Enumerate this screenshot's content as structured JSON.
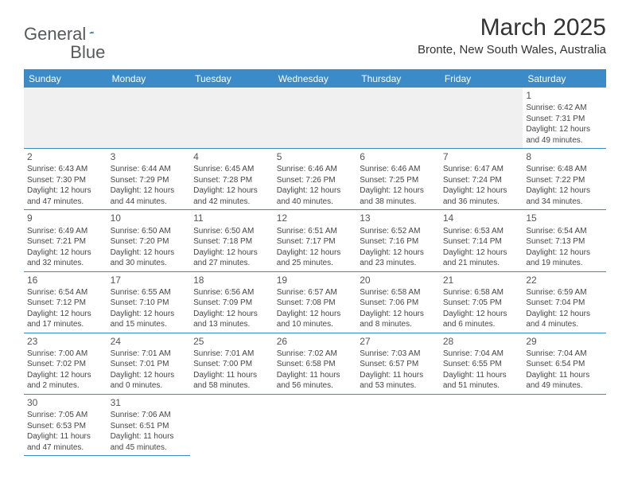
{
  "logo": {
    "text1": "General",
    "text2": "Blue"
  },
  "title": "March 2025",
  "subtitle": "Bronte, New South Wales, Australia",
  "colors": {
    "header_bg": "#3b8bc9",
    "header_text": "#ffffff",
    "border": "#3b8bc9",
    "empty_bg": "#f0f0f0",
    "page_bg": "#ffffff",
    "text": "#454545",
    "daynum": "#555555"
  },
  "days_of_week": [
    "Sunday",
    "Monday",
    "Tuesday",
    "Wednesday",
    "Thursday",
    "Friday",
    "Saturday"
  ],
  "weeks": [
    [
      null,
      null,
      null,
      null,
      null,
      null,
      {
        "n": "1",
        "sr": "Sunrise: 6:42 AM",
        "ss": "Sunset: 7:31 PM",
        "d1": "Daylight: 12 hours",
        "d2": "and 49 minutes."
      }
    ],
    [
      {
        "n": "2",
        "sr": "Sunrise: 6:43 AM",
        "ss": "Sunset: 7:30 PM",
        "d1": "Daylight: 12 hours",
        "d2": "and 47 minutes."
      },
      {
        "n": "3",
        "sr": "Sunrise: 6:44 AM",
        "ss": "Sunset: 7:29 PM",
        "d1": "Daylight: 12 hours",
        "d2": "and 44 minutes."
      },
      {
        "n": "4",
        "sr": "Sunrise: 6:45 AM",
        "ss": "Sunset: 7:28 PM",
        "d1": "Daylight: 12 hours",
        "d2": "and 42 minutes."
      },
      {
        "n": "5",
        "sr": "Sunrise: 6:46 AM",
        "ss": "Sunset: 7:26 PM",
        "d1": "Daylight: 12 hours",
        "d2": "and 40 minutes."
      },
      {
        "n": "6",
        "sr": "Sunrise: 6:46 AM",
        "ss": "Sunset: 7:25 PM",
        "d1": "Daylight: 12 hours",
        "d2": "and 38 minutes."
      },
      {
        "n": "7",
        "sr": "Sunrise: 6:47 AM",
        "ss": "Sunset: 7:24 PM",
        "d1": "Daylight: 12 hours",
        "d2": "and 36 minutes."
      },
      {
        "n": "8",
        "sr": "Sunrise: 6:48 AM",
        "ss": "Sunset: 7:22 PM",
        "d1": "Daylight: 12 hours",
        "d2": "and 34 minutes."
      }
    ],
    [
      {
        "n": "9",
        "sr": "Sunrise: 6:49 AM",
        "ss": "Sunset: 7:21 PM",
        "d1": "Daylight: 12 hours",
        "d2": "and 32 minutes."
      },
      {
        "n": "10",
        "sr": "Sunrise: 6:50 AM",
        "ss": "Sunset: 7:20 PM",
        "d1": "Daylight: 12 hours",
        "d2": "and 30 minutes."
      },
      {
        "n": "11",
        "sr": "Sunrise: 6:50 AM",
        "ss": "Sunset: 7:18 PM",
        "d1": "Daylight: 12 hours",
        "d2": "and 27 minutes."
      },
      {
        "n": "12",
        "sr": "Sunrise: 6:51 AM",
        "ss": "Sunset: 7:17 PM",
        "d1": "Daylight: 12 hours",
        "d2": "and 25 minutes."
      },
      {
        "n": "13",
        "sr": "Sunrise: 6:52 AM",
        "ss": "Sunset: 7:16 PM",
        "d1": "Daylight: 12 hours",
        "d2": "and 23 minutes."
      },
      {
        "n": "14",
        "sr": "Sunrise: 6:53 AM",
        "ss": "Sunset: 7:14 PM",
        "d1": "Daylight: 12 hours",
        "d2": "and 21 minutes."
      },
      {
        "n": "15",
        "sr": "Sunrise: 6:54 AM",
        "ss": "Sunset: 7:13 PM",
        "d1": "Daylight: 12 hours",
        "d2": "and 19 minutes."
      }
    ],
    [
      {
        "n": "16",
        "sr": "Sunrise: 6:54 AM",
        "ss": "Sunset: 7:12 PM",
        "d1": "Daylight: 12 hours",
        "d2": "and 17 minutes."
      },
      {
        "n": "17",
        "sr": "Sunrise: 6:55 AM",
        "ss": "Sunset: 7:10 PM",
        "d1": "Daylight: 12 hours",
        "d2": "and 15 minutes."
      },
      {
        "n": "18",
        "sr": "Sunrise: 6:56 AM",
        "ss": "Sunset: 7:09 PM",
        "d1": "Daylight: 12 hours",
        "d2": "and 13 minutes."
      },
      {
        "n": "19",
        "sr": "Sunrise: 6:57 AM",
        "ss": "Sunset: 7:08 PM",
        "d1": "Daylight: 12 hours",
        "d2": "and 10 minutes."
      },
      {
        "n": "20",
        "sr": "Sunrise: 6:58 AM",
        "ss": "Sunset: 7:06 PM",
        "d1": "Daylight: 12 hours",
        "d2": "and 8 minutes."
      },
      {
        "n": "21",
        "sr": "Sunrise: 6:58 AM",
        "ss": "Sunset: 7:05 PM",
        "d1": "Daylight: 12 hours",
        "d2": "and 6 minutes."
      },
      {
        "n": "22",
        "sr": "Sunrise: 6:59 AM",
        "ss": "Sunset: 7:04 PM",
        "d1": "Daylight: 12 hours",
        "d2": "and 4 minutes."
      }
    ],
    [
      {
        "n": "23",
        "sr": "Sunrise: 7:00 AM",
        "ss": "Sunset: 7:02 PM",
        "d1": "Daylight: 12 hours",
        "d2": "and 2 minutes."
      },
      {
        "n": "24",
        "sr": "Sunrise: 7:01 AM",
        "ss": "Sunset: 7:01 PM",
        "d1": "Daylight: 12 hours",
        "d2": "and 0 minutes."
      },
      {
        "n": "25",
        "sr": "Sunrise: 7:01 AM",
        "ss": "Sunset: 7:00 PM",
        "d1": "Daylight: 11 hours",
        "d2": "and 58 minutes."
      },
      {
        "n": "26",
        "sr": "Sunrise: 7:02 AM",
        "ss": "Sunset: 6:58 PM",
        "d1": "Daylight: 11 hours",
        "d2": "and 56 minutes."
      },
      {
        "n": "27",
        "sr": "Sunrise: 7:03 AM",
        "ss": "Sunset: 6:57 PM",
        "d1": "Daylight: 11 hours",
        "d2": "and 53 minutes."
      },
      {
        "n": "28",
        "sr": "Sunrise: 7:04 AM",
        "ss": "Sunset: 6:55 PM",
        "d1": "Daylight: 11 hours",
        "d2": "and 51 minutes."
      },
      {
        "n": "29",
        "sr": "Sunrise: 7:04 AM",
        "ss": "Sunset: 6:54 PM",
        "d1": "Daylight: 11 hours",
        "d2": "and 49 minutes."
      }
    ],
    [
      {
        "n": "30",
        "sr": "Sunrise: 7:05 AM",
        "ss": "Sunset: 6:53 PM",
        "d1": "Daylight: 11 hours",
        "d2": "and 47 minutes."
      },
      {
        "n": "31",
        "sr": "Sunrise: 7:06 AM",
        "ss": "Sunset: 6:51 PM",
        "d1": "Daylight: 11 hours",
        "d2": "and 45 minutes."
      },
      null,
      null,
      null,
      null,
      null
    ]
  ]
}
